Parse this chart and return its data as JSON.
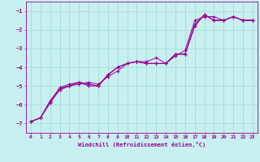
{
  "background_color": "#c8f0f0",
  "grid_color": "#aadddd",
  "line_color": "#990099",
  "xlim": [
    -0.5,
    23.5
  ],
  "ylim": [
    -7.5,
    -0.5
  ],
  "yticks": [
    -7,
    -6,
    -5,
    -4,
    -3,
    -2,
    -1
  ],
  "xticks": [
    0,
    1,
    2,
    3,
    4,
    5,
    6,
    7,
    8,
    9,
    10,
    11,
    12,
    13,
    14,
    15,
    16,
    17,
    18,
    19,
    20,
    21,
    22,
    23
  ],
  "xlabel": "Windchill (Refroidissement éolien,°C)",
  "series2": [
    {
      "x": [
        0,
        1,
        2,
        3,
        4,
        5,
        6,
        7,
        8,
        9,
        10,
        11,
        12,
        13,
        14,
        15,
        16,
        17,
        18,
        19,
        20,
        21,
        22,
        23
      ],
      "y": [
        -6.9,
        -6.7,
        -5.9,
        -5.2,
        -5.0,
        -4.9,
        -4.8,
        -4.9,
        -4.5,
        -4.2,
        -3.8,
        -3.7,
        -3.7,
        -3.5,
        -3.8,
        -3.4,
        -3.1,
        -1.5,
        -1.3,
        -1.3,
        -1.5,
        -1.3,
        -1.5,
        -1.5
      ]
    },
    {
      "x": [
        0,
        1,
        2,
        3,
        4,
        5,
        6,
        7,
        8,
        9,
        10,
        11,
        12,
        13,
        14,
        15,
        16,
        17,
        18,
        19,
        20,
        21,
        22,
        23
      ],
      "y": [
        -6.9,
        -6.7,
        -5.8,
        -5.1,
        -5.0,
        -4.8,
        -5.0,
        -5.0,
        -4.4,
        -4.0,
        -3.8,
        -3.7,
        -3.8,
        -3.8,
        -3.8,
        -3.3,
        -3.3,
        -1.8,
        -1.2,
        -1.5,
        -1.5,
        -1.3,
        -1.5,
        -1.5
      ]
    },
    {
      "x": [
        0,
        1,
        2,
        3,
        4,
        5,
        6,
        7,
        8,
        9,
        10,
        11,
        12,
        13,
        14,
        15,
        16,
        17,
        18,
        19,
        20,
        21,
        22,
        23
      ],
      "y": [
        -6.9,
        -6.7,
        -5.8,
        -5.2,
        -5.0,
        -4.8,
        -4.9,
        -5.0,
        -4.4,
        -4.0,
        -3.8,
        -3.7,
        -3.8,
        -3.8,
        -3.8,
        -3.3,
        -3.3,
        -1.8,
        -1.2,
        -1.5,
        -1.5,
        -1.3,
        -1.5,
        -1.5
      ]
    },
    {
      "x": [
        0,
        1,
        2,
        3,
        4,
        5,
        6,
        7,
        8,
        9,
        10,
        11,
        12,
        13,
        14,
        15,
        16,
        17,
        18,
        19,
        20,
        21,
        22,
        23
      ],
      "y": [
        -6.9,
        -6.7,
        -5.9,
        -5.1,
        -4.9,
        -4.8,
        -4.9,
        -5.0,
        -4.4,
        -4.0,
        -3.8,
        -3.7,
        -3.8,
        -3.8,
        -3.8,
        -3.3,
        -3.3,
        -1.7,
        -1.2,
        -1.5,
        -1.5,
        -1.3,
        -1.5,
        -1.5
      ]
    }
  ]
}
